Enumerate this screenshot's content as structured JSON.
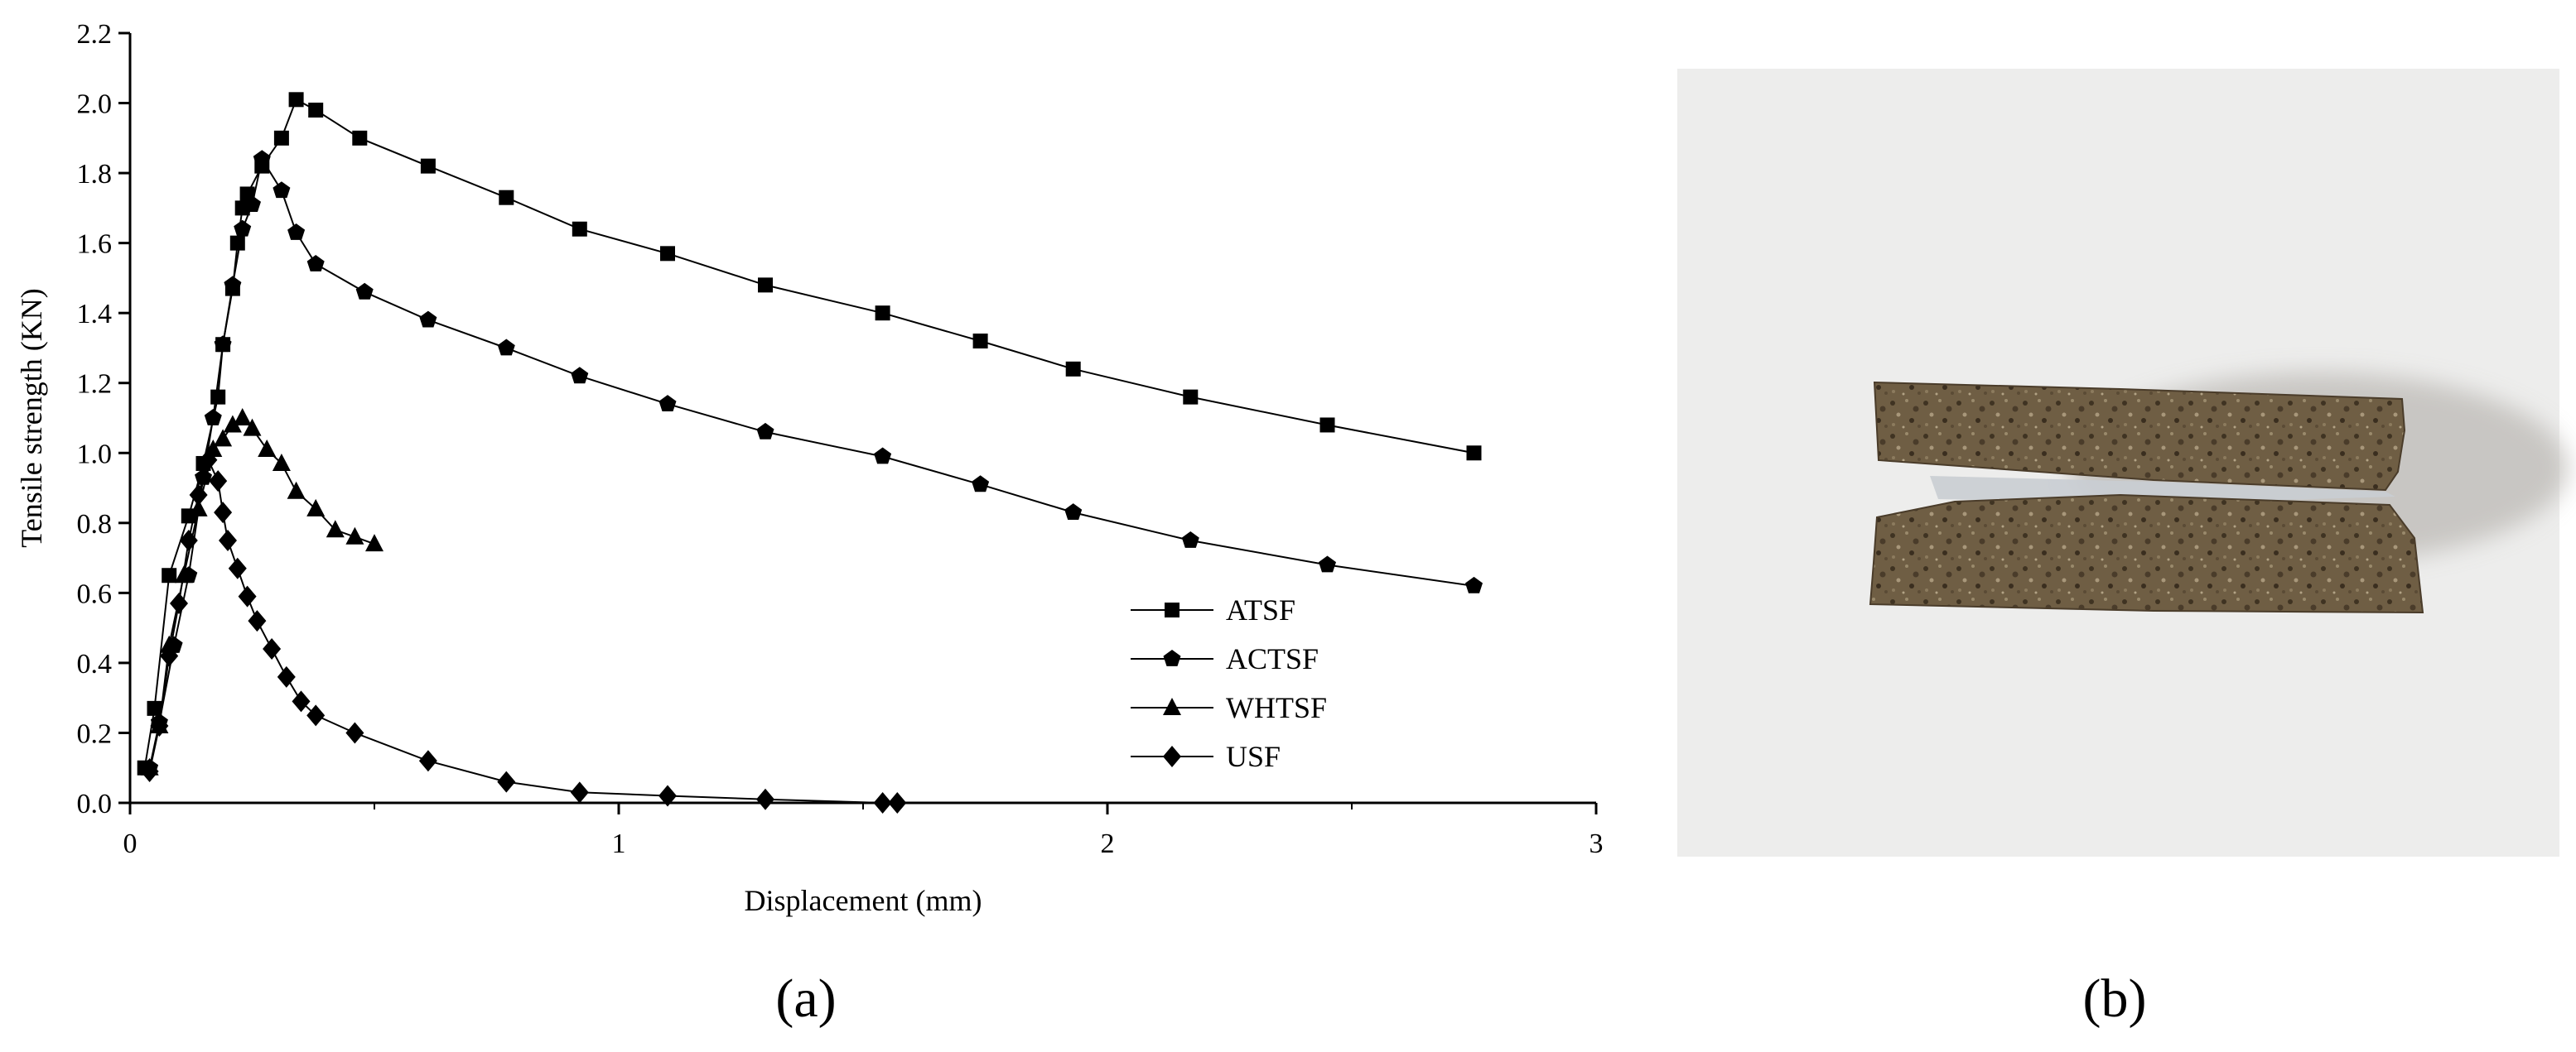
{
  "panels": {
    "a": "(a)",
    "b": "(b)"
  },
  "chart_data": {
    "type": "line",
    "xlabel": "Displacement (mm)",
    "ylabel": "Tensile strength (KN)",
    "xlim": [
      0,
      3
    ],
    "ylim": [
      0,
      2.2
    ],
    "xticks": [
      "0",
      "1",
      "2",
      "3"
    ],
    "yticks": [
      "0.0",
      "0.2",
      "0.4",
      "0.6",
      "0.8",
      "1.0",
      "1.2",
      "1.4",
      "1.6",
      "1.8",
      "2.0",
      "2.2"
    ],
    "grid": false,
    "legend_position": "lower-right",
    "series": [
      {
        "name": "ATSF",
        "marker": "square",
        "x": [
          0.03,
          0.05,
          0.08,
          0.12,
          0.15,
          0.18,
          0.19,
          0.21,
          0.22,
          0.23,
          0.24,
          0.27,
          0.31,
          0.34,
          0.38,
          0.47,
          0.61,
          0.77,
          0.92,
          1.1,
          1.3,
          1.54,
          1.74,
          1.93,
          2.17,
          2.45,
          2.75
        ],
        "y": [
          0.1,
          0.27,
          0.65,
          0.82,
          0.97,
          1.16,
          1.31,
          1.47,
          1.6,
          1.7,
          1.74,
          1.82,
          1.9,
          2.01,
          1.98,
          1.9,
          1.82,
          1.73,
          1.64,
          1.57,
          1.48,
          1.4,
          1.32,
          1.24,
          1.16,
          1.08,
          1.0
        ]
      },
      {
        "name": "ACTSF",
        "marker": "pentagon",
        "x": [
          0.04,
          0.06,
          0.09,
          0.12,
          0.15,
          0.17,
          0.19,
          0.21,
          0.23,
          0.25,
          0.27,
          0.31,
          0.34,
          0.38,
          0.48,
          0.61,
          0.77,
          0.92,
          1.1,
          1.3,
          1.54,
          1.74,
          1.93,
          2.17,
          2.45,
          2.75
        ],
        "y": [
          0.1,
          0.23,
          0.45,
          0.65,
          0.93,
          1.1,
          1.31,
          1.48,
          1.64,
          1.71,
          1.84,
          1.75,
          1.63,
          1.54,
          1.46,
          1.38,
          1.3,
          1.22,
          1.14,
          1.06,
          0.99,
          0.91,
          0.83,
          0.75,
          0.68,
          0.62
        ]
      },
      {
        "name": "WHTSF",
        "marker": "triangle",
        "x": [
          0.04,
          0.06,
          0.08,
          0.11,
          0.14,
          0.17,
          0.19,
          0.21,
          0.23,
          0.25,
          0.28,
          0.31,
          0.34,
          0.38,
          0.42,
          0.46,
          0.5
        ],
        "y": [
          0.1,
          0.22,
          0.45,
          0.65,
          0.84,
          1.01,
          1.04,
          1.08,
          1.1,
          1.07,
          1.01,
          0.97,
          0.89,
          0.84,
          0.78,
          0.76,
          0.74
        ]
      },
      {
        "name": "USF",
        "marker": "diamond",
        "x": [
          0.04,
          0.06,
          0.08,
          0.1,
          0.12,
          0.14,
          0.16,
          0.18,
          0.19,
          0.2,
          0.22,
          0.24,
          0.26,
          0.29,
          0.32,
          0.35,
          0.38,
          0.46,
          0.61,
          0.77,
          0.92,
          1.1,
          1.3,
          1.54,
          1.57
        ],
        "y": [
          0.09,
          0.22,
          0.42,
          0.57,
          0.75,
          0.88,
          0.98,
          0.92,
          0.83,
          0.75,
          0.67,
          0.59,
          0.52,
          0.44,
          0.36,
          0.29,
          0.25,
          0.2,
          0.12,
          0.06,
          0.03,
          0.02,
          0.01,
          0.0,
          0.0
        ]
      }
    ]
  },
  "photo": {
    "colors": {
      "background": "#ededec",
      "shadow": "#c7c5c2",
      "sample": "#6f5e44",
      "sample_dark": "#4a3c2a",
      "gap": "#c9cdd3"
    }
  }
}
